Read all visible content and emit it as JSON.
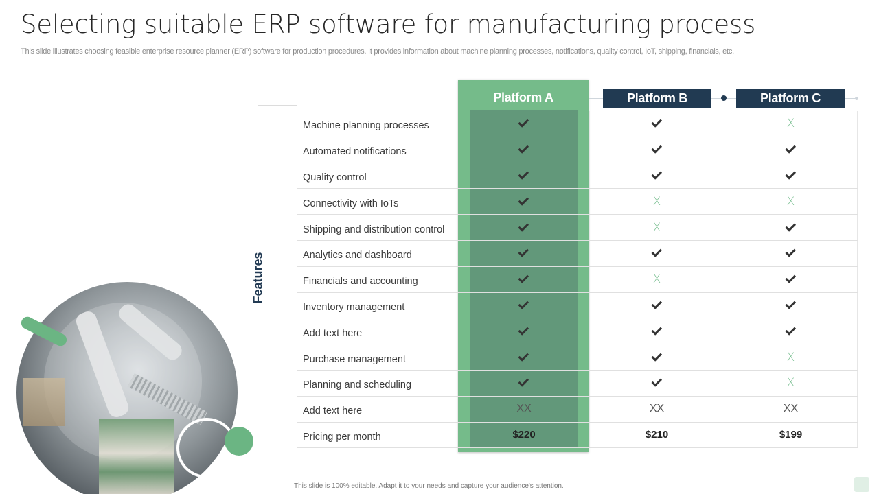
{
  "slide": {
    "title": "Selecting suitable ERP software for manufacturing process",
    "subtitle": "This slide illustrates choosing feasible enterprise resource planner (ERP) software for production procedures. It provides information about machine planning processes, notifications, quality control, IoT,  shipping, financials, etc.",
    "footer": "This slide is 100% editable.  Adapt it to your needs and capture your audience's attention."
  },
  "colors": {
    "highlight_green": "#75bb8a",
    "highlight_inner": "#62987a",
    "header_navy": "#213a52",
    "cross_green": "#7cc093",
    "accent_green": "#6bb583"
  },
  "table": {
    "side_label": "Features",
    "platforms": [
      "Platform A",
      "Platform B",
      "Platform C"
    ],
    "rows": [
      {
        "feature": "Machine planning processes",
        "a": "check",
        "b": "check",
        "c": "X"
      },
      {
        "feature": "Automated notifications",
        "a": "check",
        "b": "check",
        "c": "check"
      },
      {
        "feature": "Quality control",
        "a": "check",
        "b": "check",
        "c": "check"
      },
      {
        "feature": "Connectivity with IoTs",
        "a": "check",
        "b": "X",
        "c": "X"
      },
      {
        "feature": "Shipping and distribution control",
        "a": "check",
        "b": "X",
        "c": "check"
      },
      {
        "feature": "Analytics and dashboard",
        "a": "check",
        "b": "check",
        "c": "check"
      },
      {
        "feature": "Financials and accounting",
        "a": "check",
        "b": "X",
        "c": "check"
      },
      {
        "feature": "Inventory management",
        "a": "check",
        "b": "check",
        "c": "check"
      },
      {
        "feature": "Add text here",
        "a": "check",
        "b": "check",
        "c": "check"
      },
      {
        "feature": "Purchase management",
        "a": "check",
        "b": "check",
        "c": "X"
      },
      {
        "feature": "Planning and scheduling",
        "a": "check",
        "b": "check",
        "c": "X"
      },
      {
        "feature": "Add text here",
        "a": "XX",
        "b": "XX",
        "c": "XX"
      },
      {
        "feature": "Pricing per month",
        "a": "$220",
        "b": "$210",
        "c": "$199"
      }
    ]
  }
}
